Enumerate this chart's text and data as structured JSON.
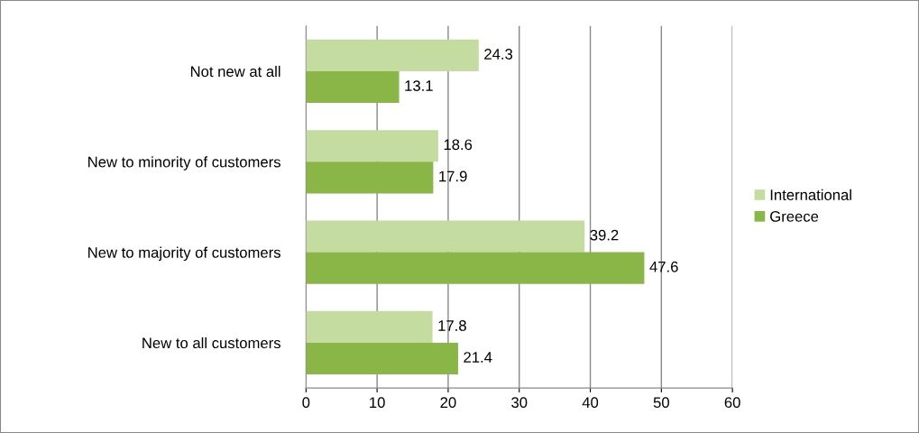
{
  "chart_data": {
    "type": "bar",
    "orientation": "horizontal",
    "categories": [
      "Not new at all",
      "New to minority of customers",
      "New to majority of customers",
      "New to all customers"
    ],
    "series": [
      {
        "name": "International",
        "color": "#c4dca0",
        "values": [
          24.3,
          18.6,
          39.2,
          17.8
        ]
      },
      {
        "name": "Greece",
        "color": "#8ab547",
        "values": [
          13.1,
          17.9,
          47.6,
          21.4
        ]
      }
    ],
    "xlim": [
      0,
      60
    ],
    "xticks": [
      0,
      10,
      20,
      30,
      40,
      50,
      60
    ],
    "grid": "x",
    "legend": "right",
    "data_labels": true
  }
}
